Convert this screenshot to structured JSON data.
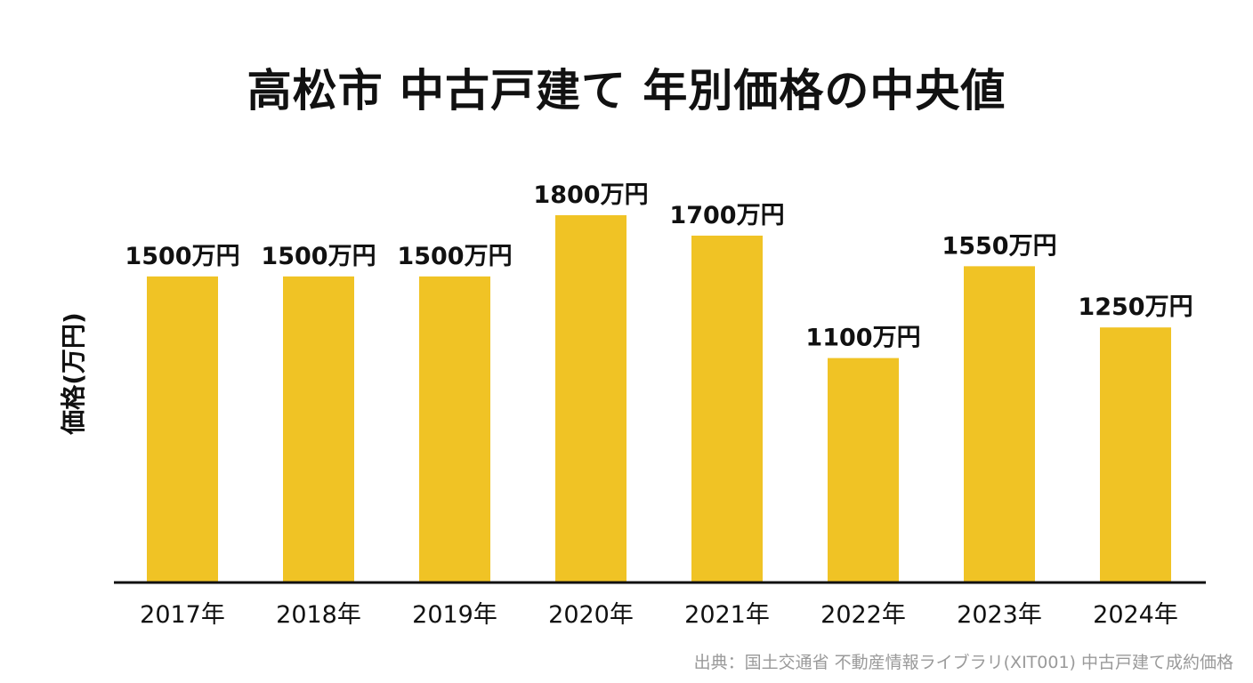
{
  "chart_data": {
    "type": "bar",
    "title": "高松市 中古戸建て 年別価格の中央値",
    "xlabel": "",
    "ylabel": "価格(万円)",
    "categories": [
      "2017年",
      "2018年",
      "2019年",
      "2020年",
      "2021年",
      "2022年",
      "2023年",
      "2024年"
    ],
    "values": [
      1500,
      1500,
      1500,
      1800,
      1700,
      1100,
      1550,
      1250
    ],
    "data_labels": [
      "1500万円",
      "1500万円",
      "1500万円",
      "1800万円",
      "1700万円",
      "1100万円",
      "1550万円",
      "1250万円"
    ],
    "ylim": [
      0,
      1840
    ],
    "grid": false,
    "bar_color": "#F0C325",
    "axis_color": "#111111"
  },
  "source_note": "出典：国土交通省 不動産情報ライブラリ(XIT001) 中古戸建て成約価格"
}
